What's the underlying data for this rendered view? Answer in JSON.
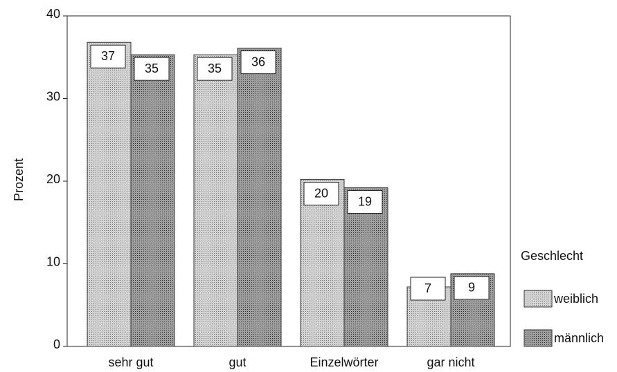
{
  "chart_data": {
    "type": "bar",
    "y_label": "Prozent",
    "legend_title": "Geschlecht",
    "categories": [
      "sehr gut",
      "gut",
      "Einzelwörter",
      "gar nicht"
    ],
    "series": [
      {
        "name": "weiblich",
        "color": "#d2d2d2",
        "values": [
          36.8,
          35.3,
          20.2,
          7.2
        ],
        "value_labels": [
          "37",
          "35",
          "20",
          "7"
        ]
      },
      {
        "name": "männlich",
        "color": "#9e9e9e",
        "values": [
          35.3,
          36.1,
          19.2,
          8.8
        ],
        "value_labels": [
          "35",
          "36",
          "19",
          "9"
        ]
      }
    ],
    "ylim": [
      0,
      40
    ],
    "yticks": [
      0,
      10,
      20,
      30,
      40
    ],
    "legend": "right"
  }
}
